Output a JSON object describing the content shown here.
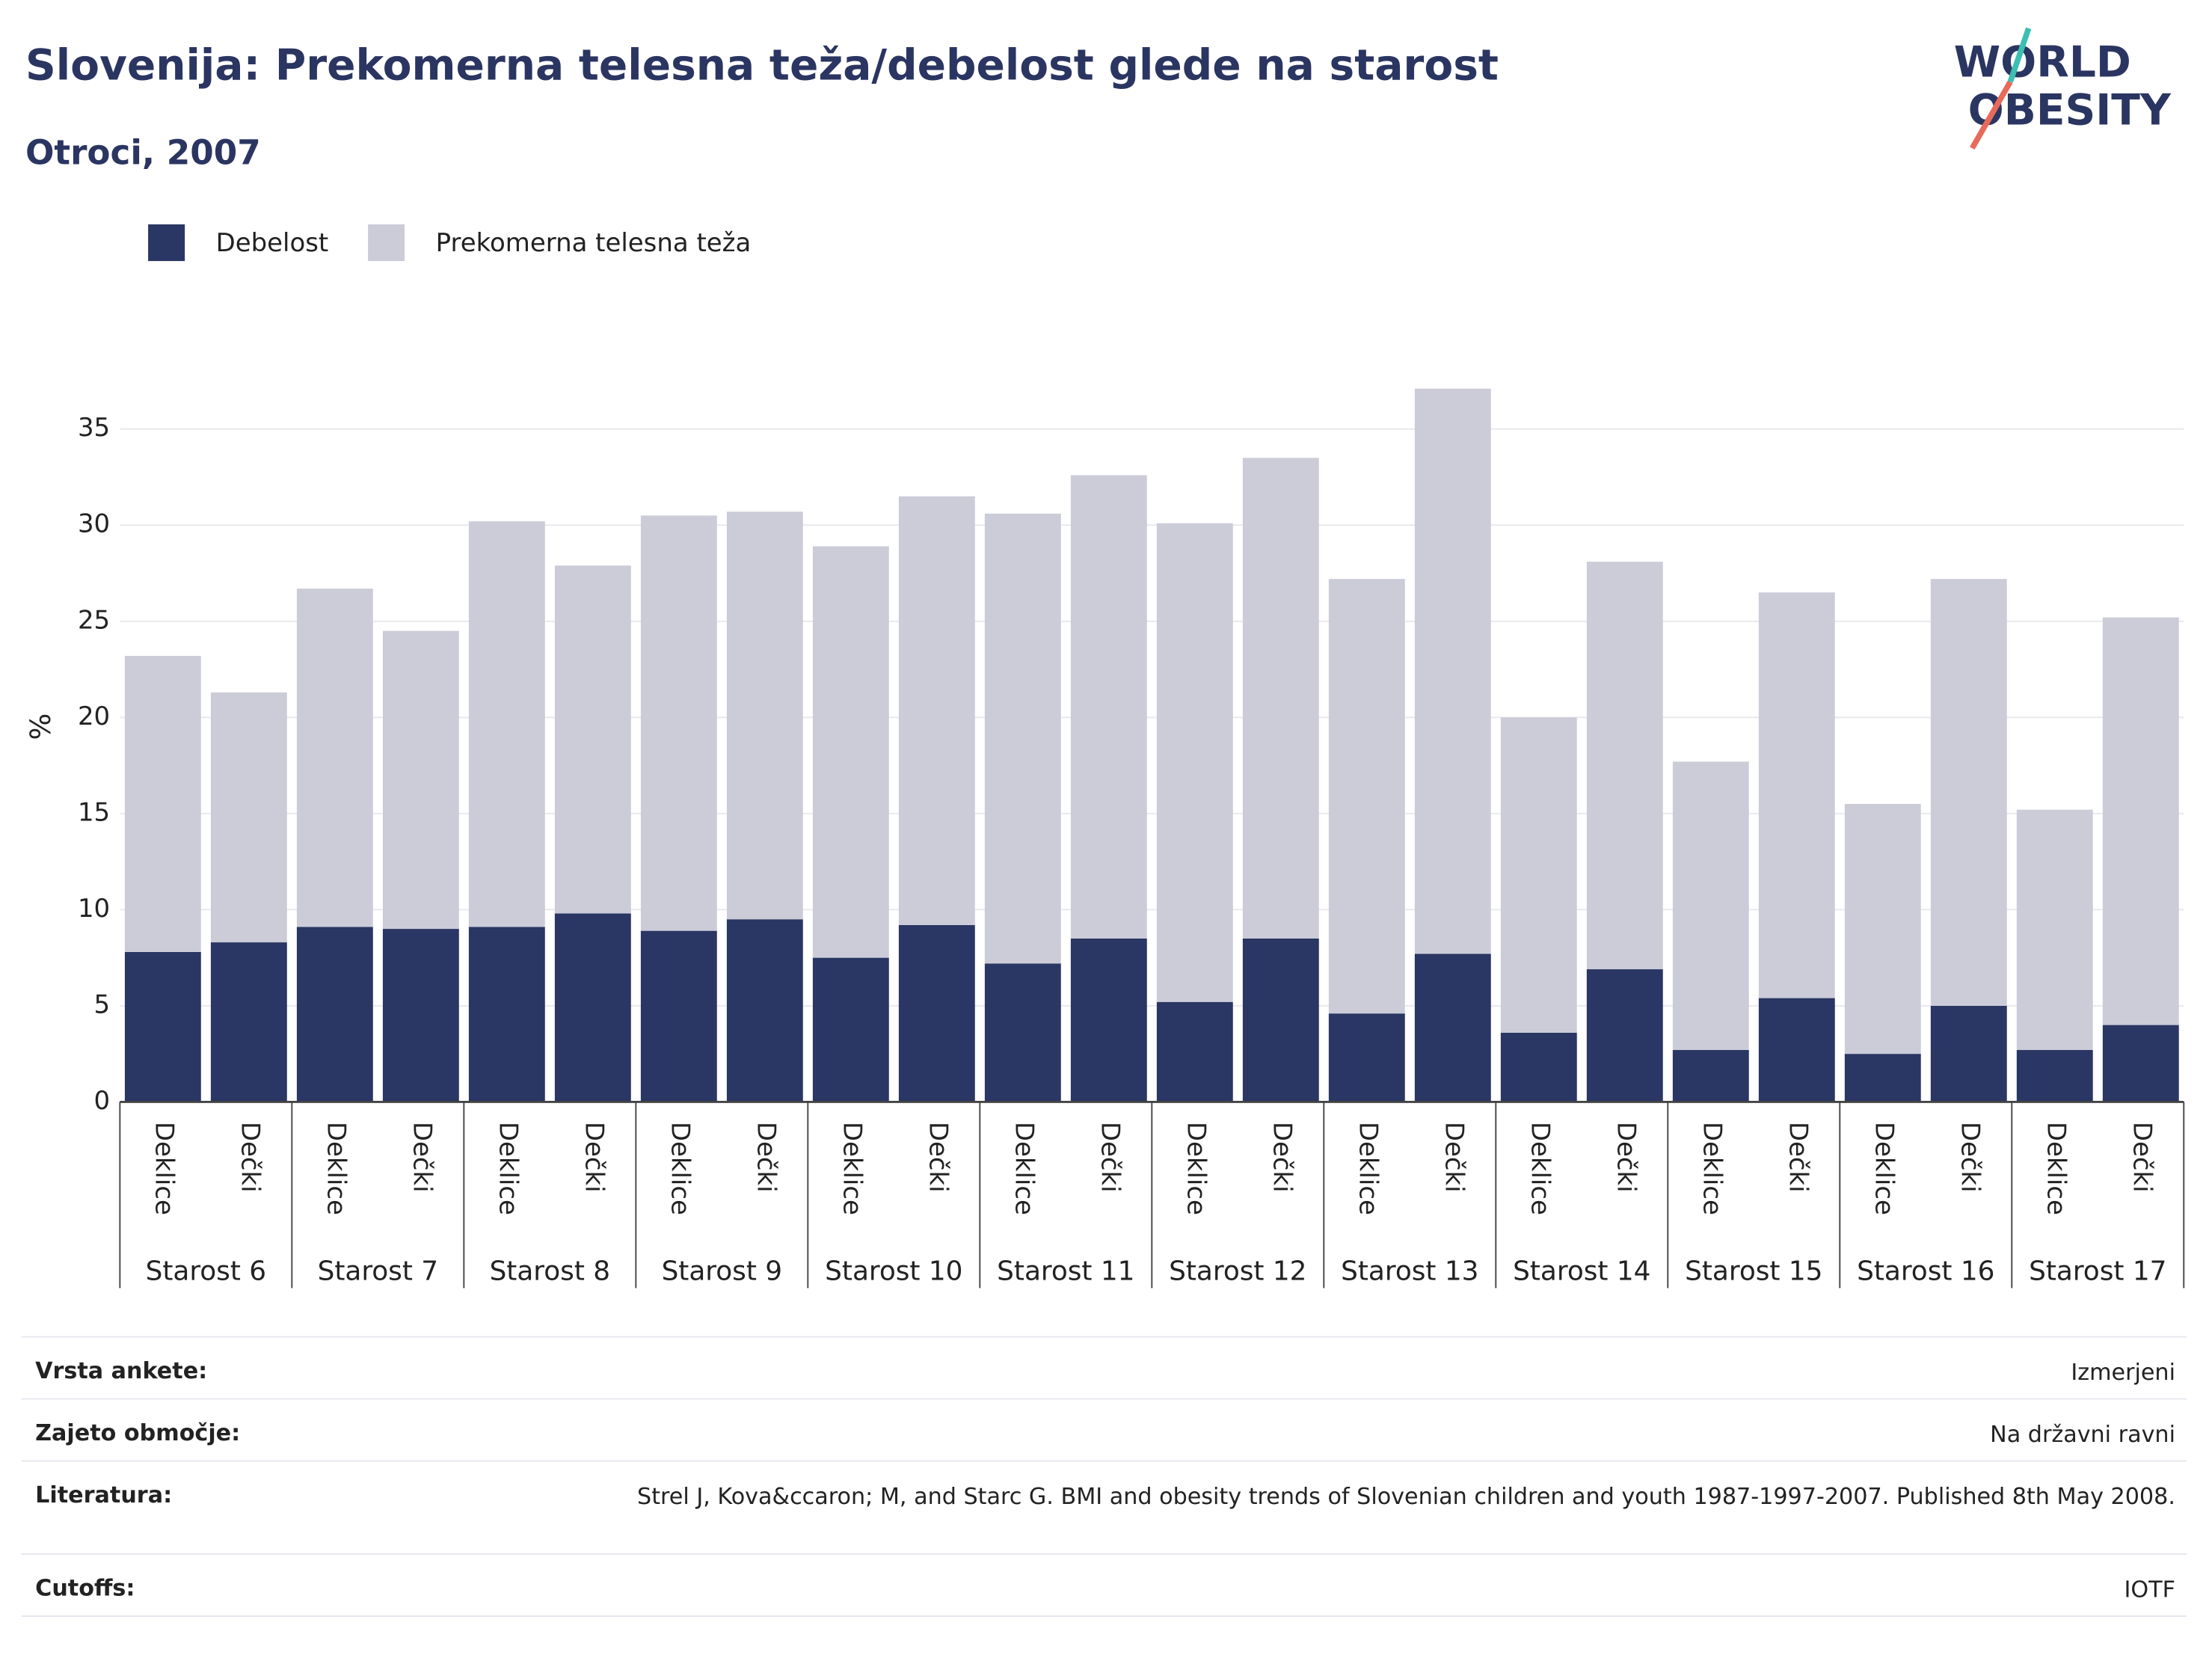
{
  "chart_data": {
    "type": "stacked_bar",
    "title": "Slovenija: Prekomerna telesna teža/debelost glede na starost",
    "subtitle": "Otroci, 2007",
    "logo": [
      "WORLD",
      "OBESITY"
    ],
    "y_label": "%",
    "categories": [
      "Deklice",
      "Dečki",
      "Deklice",
      "Dečki",
      "Deklice",
      "Dečki",
      "Deklice",
      "Dečki",
      "Deklice",
      "Dečki",
      "Deklice",
      "Dečki",
      "Deklice",
      "Dečki",
      "Deklice",
      "Dečki",
      "Deklice",
      "Dečki",
      "Deklice",
      "Dečki",
      "Deklice",
      "Dečki",
      "Deklice",
      "Dečki"
    ],
    "groups": [
      "Starost 6",
      "Starost 7",
      "Starost 8",
      "Starost 9",
      "Starost 10",
      "Starost 11",
      "Starost 12",
      "Starost 13",
      "Starost 14",
      "Starost 15",
      "Starost 16",
      "Starost 17"
    ],
    "series": [
      {
        "name": "Debelost",
        "color": "#2a3663",
        "values": [
          7.8,
          8.3,
          9.1,
          9.0,
          9.1,
          9.8,
          8.9,
          9.5,
          7.5,
          9.2,
          7.2,
          8.5,
          5.2,
          8.5,
          4.6,
          7.7,
          3.6,
          6.9,
          2.7,
          5.4,
          2.5,
          5.0,
          2.7,
          4.0
        ]
      },
      {
        "name": "Prekomerna telesna teža",
        "color": "#cbccd8",
        "values": [
          15.4,
          13.0,
          17.6,
          15.5,
          21.1,
          18.1,
          21.6,
          21.2,
          21.4,
          22.3,
          23.4,
          24.1,
          24.9,
          25.0,
          22.6,
          29.4,
          16.4,
          21.2,
          15.0,
          21.1,
          13.0,
          22.2,
          12.5,
          21.2
        ]
      }
    ],
    "ylim": [
      0,
      37.5
    ],
    "yticks": [
      0,
      5,
      10,
      15,
      20,
      25,
      30,
      35
    ],
    "grid": true,
    "footer": [
      {
        "label": "Vrsta ankete:",
        "value": "Izmerjeni"
      },
      {
        "label": "Zajeto območje:",
        "value": "Na državni ravni"
      },
      {
        "label": "Literatura:",
        "value": "Strel J, Kova&ccaron; M, and Starc G. BMI and obesity trends of Slovenian children and youth 1987-1997-2007. Published 8th May 2008."
      },
      {
        "label": "Cutoffs:",
        "value": "IOTF"
      }
    ]
  }
}
